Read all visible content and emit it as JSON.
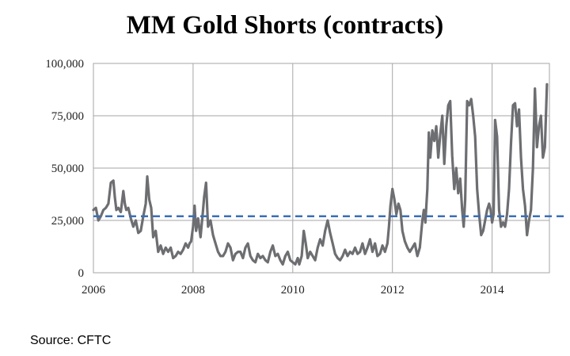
{
  "chart_data": {
    "type": "line",
    "title": "MM Gold Shorts (contracts)",
    "xlabel": "",
    "ylabel": "",
    "xlim": [
      2006,
      2015.15
    ],
    "ylim": [
      0,
      100000
    ],
    "x_ticks": [
      2006,
      2008,
      2010,
      2012,
      2014
    ],
    "x_tick_labels": [
      "2006",
      "2008",
      "2010",
      "2012",
      "2014"
    ],
    "y_ticks": [
      0,
      25000,
      50000,
      75000,
      100000
    ],
    "y_tick_labels": [
      "0",
      "25,000",
      "50,000",
      "75,000",
      "100,000"
    ],
    "grid": true,
    "legend": "none",
    "line_color": "#6d6e71",
    "reference_color": "#3a6fb7",
    "reference_line": {
      "y": 27000,
      "style": "dashed"
    },
    "series": [
      {
        "x": [
          2006.0,
          2006.05,
          2006.1,
          2006.15,
          2006.2,
          2006.25,
          2006.3,
          2006.35,
          2006.4,
          2006.43,
          2006.46,
          2006.5,
          2006.55,
          2006.6,
          2006.63,
          2006.66,
          2006.7,
          2006.75,
          2006.8,
          2006.85,
          2006.9,
          2006.95,
          2007.0,
          2007.05,
          2007.08,
          2007.12,
          2007.16,
          2007.2,
          2007.25,
          2007.3,
          2007.35,
          2007.4,
          2007.45,
          2007.5,
          2007.55,
          2007.6,
          2007.65,
          2007.7,
          2007.75,
          2007.8,
          2007.85,
          2007.9,
          2007.93,
          2007.96,
          2008.0,
          2008.03,
          2008.06,
          2008.1,
          2008.15,
          2008.2,
          2008.22,
          2008.26,
          2008.3,
          2008.35,
          2008.4,
          2008.45,
          2008.5,
          2008.55,
          2008.6,
          2008.65,
          2008.7,
          2008.75,
          2008.8,
          2008.85,
          2008.9,
          2008.95,
          2009.0,
          2009.05,
          2009.1,
          2009.15,
          2009.2,
          2009.25,
          2009.3,
          2009.35,
          2009.4,
          2009.45,
          2009.5,
          2009.55,
          2009.6,
          2009.65,
          2009.7,
          2009.75,
          2009.8,
          2009.85,
          2009.9,
          2009.95,
          2010.0,
          2010.05,
          2010.1,
          2010.13,
          2010.18,
          2010.22,
          2010.26,
          2010.3,
          2010.35,
          2010.4,
          2010.45,
          2010.5,
          2010.55,
          2010.6,
          2010.65,
          2010.7,
          2010.75,
          2010.8,
          2010.85,
          2010.9,
          2010.95,
          2011.0,
          2011.05,
          2011.1,
          2011.15,
          2011.2,
          2011.25,
          2011.3,
          2011.35,
          2011.4,
          2011.45,
          2011.5,
          2011.55,
          2011.6,
          2011.65,
          2011.7,
          2011.75,
          2011.8,
          2011.85,
          2011.9,
          2011.93,
          2011.96,
          2012.0,
          2012.04,
          2012.08,
          2012.12,
          2012.16,
          2012.2,
          2012.25,
          2012.3,
          2012.35,
          2012.4,
          2012.45,
          2012.5,
          2012.55,
          2012.6,
          2012.63,
          2012.66,
          2012.7,
          2012.73,
          2012.76,
          2012.8,
          2012.84,
          2012.88,
          2012.92,
          2012.96,
          2013.0,
          2013.04,
          2013.08,
          2013.12,
          2013.16,
          2013.2,
          2013.24,
          2013.28,
          2013.32,
          2013.36,
          2013.4,
          2013.43,
          2013.46,
          2013.5,
          2013.54,
          2013.58,
          2013.62,
          2013.66,
          2013.7,
          2013.74,
          2013.78,
          2013.82,
          2013.86,
          2013.9,
          2013.94,
          2013.97,
          2014.0,
          2014.03,
          2014.06,
          2014.1,
          2014.14,
          2014.18,
          2014.22,
          2014.26,
          2014.3,
          2014.34,
          2014.38,
          2014.42,
          2014.46,
          2014.5,
          2014.54,
          2014.58,
          2014.62,
          2014.66,
          2014.7,
          2014.74,
          2014.78,
          2014.82,
          2014.86,
          2014.9,
          2014.94,
          2014.98,
          2015.02,
          2015.06,
          2015.1
        ],
        "y": [
          30000,
          31000,
          25000,
          27000,
          30000,
          31000,
          33000,
          43000,
          44000,
          36000,
          30000,
          31000,
          29000,
          39000,
          33000,
          30000,
          31000,
          26000,
          22000,
          25000,
          19000,
          20000,
          27000,
          33000,
          46000,
          35000,
          31000,
          17000,
          20000,
          10000,
          13000,
          9000,
          12000,
          10000,
          12000,
          7000,
          8000,
          10000,
          9000,
          11000,
          14000,
          12000,
          14000,
          15000,
          22000,
          32000,
          20000,
          26000,
          17000,
          30000,
          36000,
          43000,
          22000,
          25000,
          18000,
          14000,
          10000,
          8000,
          8000,
          10000,
          14000,
          12000,
          6000,
          9000,
          10000,
          10000,
          7000,
          12000,
          14000,
          8000,
          6000,
          5000,
          9000,
          7000,
          8000,
          6000,
          5000,
          10000,
          13000,
          8000,
          9000,
          6000,
          4000,
          8000,
          10000,
          6000,
          5000,
          4000,
          7000,
          4000,
          8000,
          20000,
          14000,
          7000,
          10000,
          8000,
          6000,
          12000,
          16000,
          13000,
          20000,
          25000,
          19000,
          14000,
          9000,
          7000,
          6000,
          8000,
          11000,
          8000,
          10000,
          9000,
          12000,
          9000,
          10000,
          14000,
          9000,
          12000,
          16000,
          10000,
          14000,
          8000,
          9000,
          13000,
          10000,
          14000,
          22000,
          32000,
          40000,
          35000,
          28000,
          33000,
          30000,
          20000,
          15000,
          12000,
          10000,
          12000,
          14000,
          8000,
          12000,
          25000,
          30000,
          24000,
          40000,
          67000,
          55000,
          68000,
          63000,
          70000,
          55000,
          66000,
          75000,
          52000,
          70000,
          80000,
          82000,
          56000,
          40000,
          50000,
          38000,
          45000,
          30000,
          22000,
          35000,
          82000,
          80000,
          83000,
          75000,
          65000,
          40000,
          28000,
          18000,
          20000,
          25000,
          30000,
          33000,
          30000,
          24000,
          28000,
          73000,
          65000,
          30000,
          22000,
          24000,
          22000,
          28000,
          40000,
          62000,
          80000,
          81000,
          70000,
          78000,
          55000,
          40000,
          32000,
          18000,
          25000,
          30000,
          50000,
          88000,
          60000,
          70000,
          75000,
          55000,
          60000,
          90000
        ]
      }
    ]
  },
  "source": "Source: CFTC"
}
